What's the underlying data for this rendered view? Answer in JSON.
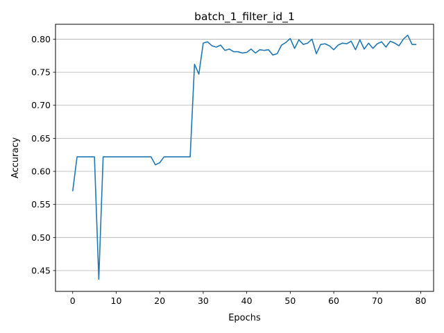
{
  "chart_data": {
    "type": "line",
    "title": "batch_1_filter_id_1",
    "xlabel": "Epochs",
    "ylabel": "Accuracy",
    "xlim": [
      -3.95,
      82.95
    ],
    "ylim": [
      0.4185,
      0.8225
    ],
    "xticks": [
      0,
      10,
      20,
      30,
      40,
      50,
      60,
      70,
      80
    ],
    "xtick_labels": [
      "0",
      "10",
      "20",
      "30",
      "40",
      "50",
      "60",
      "70",
      "80"
    ],
    "yticks": [
      0.45,
      0.5,
      0.55,
      0.6,
      0.65,
      0.7,
      0.75,
      0.8
    ],
    "ytick_labels": [
      "0.45",
      "0.50",
      "0.55",
      "0.60",
      "0.65",
      "0.70",
      "0.75",
      "0.80"
    ],
    "grid": "horizontal",
    "line_color": "#1f77b4",
    "series": [
      {
        "x": [
          0,
          1,
          2,
          3,
          4,
          5,
          6,
          7,
          8,
          9,
          10,
          11,
          12,
          13,
          14,
          15,
          16,
          17,
          18,
          19,
          20,
          21,
          22,
          23,
          24,
          25,
          26,
          27,
          28,
          29,
          30,
          31,
          32,
          33,
          34,
          35,
          36,
          37,
          38,
          39,
          40,
          41,
          42,
          43,
          44,
          45,
          46,
          47,
          48,
          49,
          50,
          51,
          52,
          53,
          54,
          55,
          56,
          57,
          58,
          59,
          60,
          61,
          62,
          63,
          64,
          65,
          66,
          67,
          68,
          69,
          70,
          71,
          72,
          73,
          74,
          75,
          76,
          77,
          78,
          79
        ],
        "values": [
          0.57,
          0.622,
          0.622,
          0.622,
          0.622,
          0.622,
          0.437,
          0.622,
          0.622,
          0.622,
          0.622,
          0.622,
          0.622,
          0.622,
          0.622,
          0.622,
          0.622,
          0.622,
          0.622,
          0.61,
          0.613,
          0.622,
          0.622,
          0.622,
          0.622,
          0.622,
          0.622,
          0.622,
          0.762,
          0.747,
          0.794,
          0.796,
          0.79,
          0.788,
          0.791,
          0.783,
          0.785,
          0.781,
          0.781,
          0.779,
          0.78,
          0.785,
          0.779,
          0.784,
          0.783,
          0.784,
          0.776,
          0.778,
          0.791,
          0.795,
          0.801,
          0.786,
          0.799,
          0.792,
          0.794,
          0.8,
          0.778,
          0.792,
          0.793,
          0.79,
          0.784,
          0.791,
          0.794,
          0.793,
          0.797,
          0.784,
          0.799,
          0.785,
          0.794,
          0.786,
          0.793,
          0.796,
          0.788,
          0.797,
          0.794,
          0.79,
          0.8,
          0.806,
          0.792,
          0.792
        ]
      }
    ]
  }
}
